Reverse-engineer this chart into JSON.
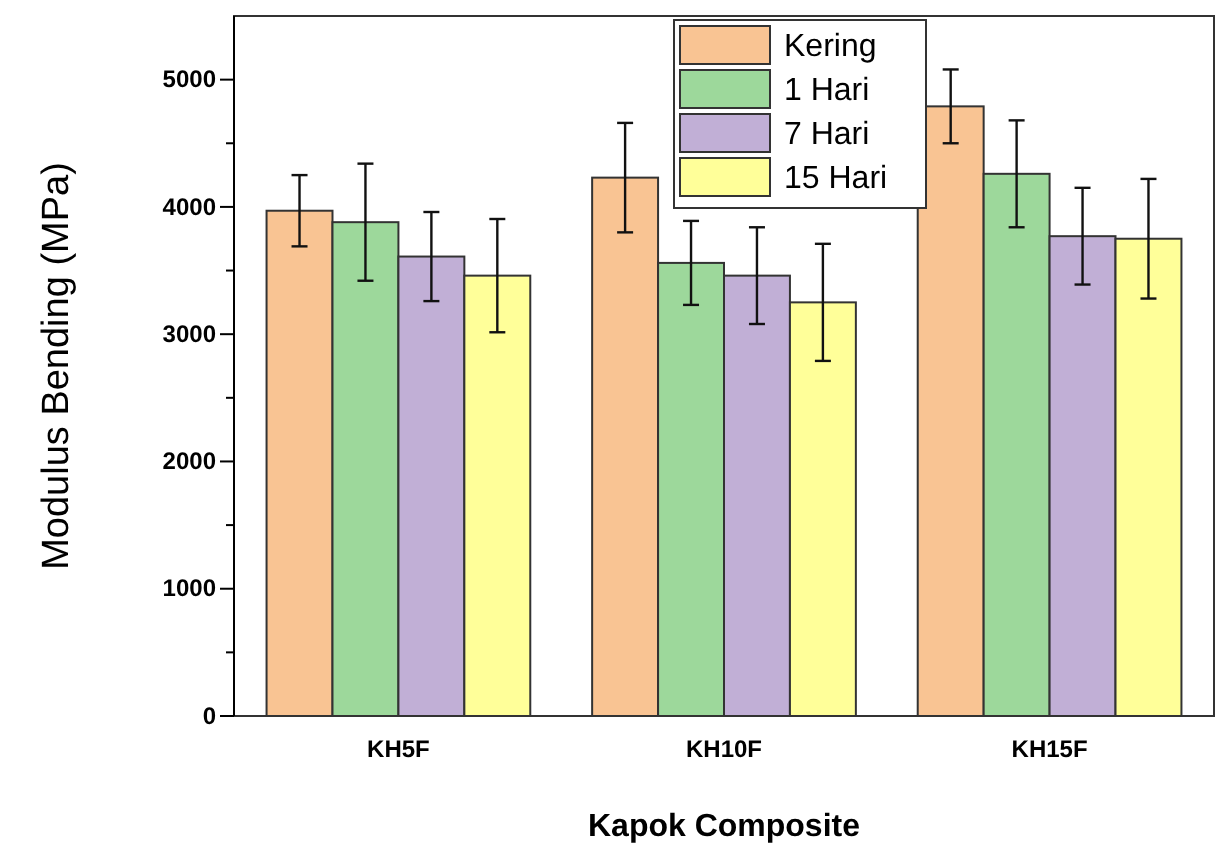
{
  "chart_data": {
    "type": "bar",
    "xlabel": "Kapok Composite",
    "ylabel": "Modulus Bending (MPa)",
    "categories": [
      "KH5F",
      "KH10F",
      "KH15F"
    ],
    "series": [
      {
        "name": "Kering",
        "color": "#f9c493",
        "values": [
          3970,
          4230,
          4790
        ],
        "errors": [
          280,
          430,
          290
        ]
      },
      {
        "name": "1 Hari",
        "color": "#9dd89b",
        "values": [
          3880,
          3560,
          4260
        ],
        "errors": [
          460,
          330,
          420
        ]
      },
      {
        "name": "7 Hari",
        "color": "#c1afd6",
        "values": [
          3610,
          3460,
          3770
        ],
        "errors": [
          350,
          380,
          380
        ]
      },
      {
        "name": "15 Hari",
        "color": "#ffff99",
        "values": [
          3460,
          3250,
          3750
        ],
        "errors": [
          445,
          460,
          470
        ]
      }
    ],
    "ylim": [
      0,
      5500
    ],
    "yticks": [
      0,
      {
        "value": 500,
        "label": null
      },
      1000,
      {
        "value": 1500,
        "label": null
      },
      2000,
      {
        "value": 2500,
        "label": null
      },
      3000,
      {
        "value": 3500,
        "label": null
      },
      4000,
      {
        "value": 4500,
        "label": null
      },
      5000
    ],
    "grid": false,
    "legend": "top"
  }
}
